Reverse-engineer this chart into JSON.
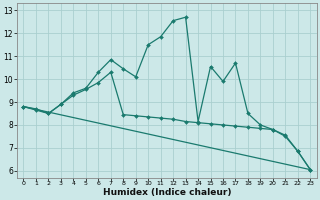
{
  "xlabel": "Humidex (Indice chaleur)",
  "background_color": "#cce8e8",
  "line_color": "#1a7a6e",
  "grid_color": "#aacfcf",
  "xlim": [
    -0.5,
    23.5
  ],
  "ylim": [
    5.7,
    13.3
  ],
  "xticks": [
    0,
    1,
    2,
    3,
    4,
    5,
    6,
    7,
    8,
    9,
    10,
    11,
    12,
    13,
    14,
    15,
    16,
    17,
    18,
    19,
    20,
    21,
    22,
    23
  ],
  "yticks": [
    6,
    7,
    8,
    9,
    10,
    11,
    12,
    13
  ],
  "line1_x": [
    0,
    1,
    2,
    3,
    4,
    5,
    6,
    7,
    8,
    9,
    10,
    11,
    12,
    13,
    14,
    15,
    16,
    17,
    18,
    19,
    20,
    21,
    22,
    23
  ],
  "line1_y": [
    8.8,
    8.7,
    8.5,
    8.9,
    9.4,
    9.6,
    10.3,
    10.85,
    10.45,
    10.1,
    11.5,
    11.85,
    12.55,
    12.7,
    8.15,
    10.55,
    9.9,
    10.7,
    8.5,
    8.0,
    7.8,
    7.5,
    6.85,
    6.05
  ],
  "line2_x": [
    0,
    1,
    2,
    3,
    4,
    5,
    6,
    7,
    8,
    9,
    10,
    11,
    12,
    13,
    14,
    15,
    16,
    17,
    18,
    19,
    20,
    21,
    22,
    23
  ],
  "line2_y": [
    8.8,
    8.65,
    8.5,
    8.9,
    9.3,
    9.55,
    9.85,
    10.3,
    8.45,
    8.4,
    8.35,
    8.3,
    8.25,
    8.15,
    8.1,
    8.05,
    8.0,
    7.95,
    7.9,
    7.85,
    7.8,
    7.55,
    6.85,
    6.05
  ],
  "line3_x": [
    0,
    23
  ],
  "line3_y": [
    8.8,
    6.05
  ]
}
